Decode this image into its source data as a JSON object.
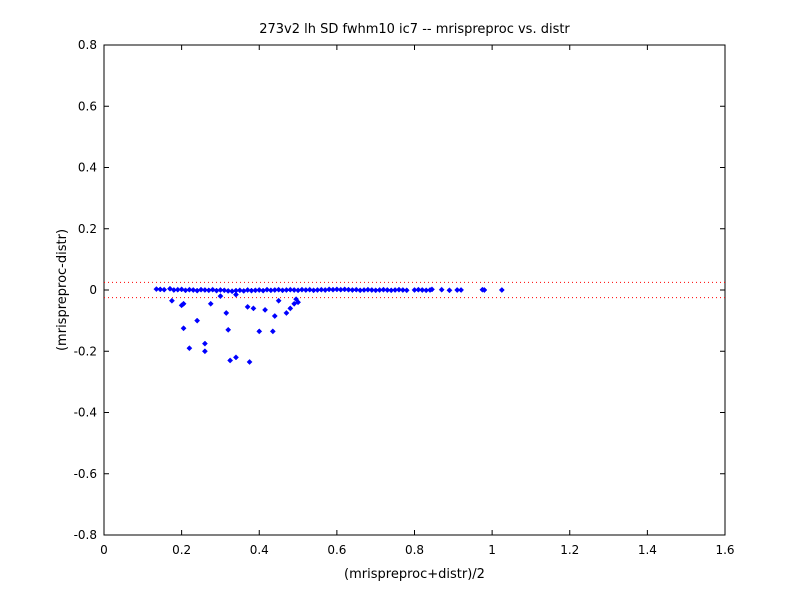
{
  "chart_data": {
    "type": "scatter",
    "title": "273v2 lh SD fwhm10 ic7 -- mrispreproc vs. distr",
    "xlabel": "(mrispreproc+distr)/2",
    "ylabel": "(mrispreproc-distr)",
    "xlim": [
      0,
      1.6
    ],
    "ylim": [
      -0.8,
      0.8
    ],
    "xticks": [
      0,
      0.2,
      0.4,
      0.6,
      0.8,
      1,
      1.2,
      1.4,
      1.6
    ],
    "xtick_labels": [
      "0",
      "0.2",
      "0.4",
      "0.6",
      "0.8",
      "1",
      "1.2",
      "1.4",
      "1.6"
    ],
    "yticks": [
      -0.8,
      -0.6,
      -0.4,
      -0.2,
      0,
      0.2,
      0.4,
      0.6,
      0.8
    ],
    "ytick_labels": [
      "-0.8",
      "-0.6",
      "-0.4",
      "-0.2",
      "0",
      "0.2",
      "0.4",
      "0.6",
      "0.8"
    ],
    "grid": false,
    "reference_lines": [
      {
        "y": 0.025,
        "style": "dotted",
        "color": "#ff0000"
      },
      {
        "y": -0.025,
        "style": "dotted",
        "color": "#ff0000"
      }
    ],
    "series": [
      {
        "color": "#0000ff",
        "marker": "diamond",
        "points": [
          [
            0.135,
            0.003
          ],
          [
            0.145,
            0.002
          ],
          [
            0.155,
            0.001
          ],
          [
            0.17,
            0.004
          ],
          [
            0.18,
            0.0
          ],
          [
            0.19,
            0.001
          ],
          [
            0.2,
            0.002
          ],
          [
            0.21,
            -0.001
          ],
          [
            0.22,
            0.001
          ],
          [
            0.23,
            0.0
          ],
          [
            0.24,
            -0.002
          ],
          [
            0.25,
            0.001
          ],
          [
            0.26,
            0.0
          ],
          [
            0.27,
            -0.001
          ],
          [
            0.28,
            0.001
          ],
          [
            0.29,
            -0.002
          ],
          [
            0.3,
            0.0
          ],
          [
            0.31,
            -0.001
          ],
          [
            0.32,
            -0.003
          ],
          [
            0.33,
            -0.004
          ],
          [
            0.34,
            -0.002
          ],
          [
            0.35,
            -0.001
          ],
          [
            0.36,
            -0.003
          ],
          [
            0.37,
            0.0
          ],
          [
            0.38,
            -0.002
          ],
          [
            0.39,
            -0.001
          ],
          [
            0.4,
            0.0
          ],
          [
            0.41,
            -0.002
          ],
          [
            0.42,
            0.001
          ],
          [
            0.43,
            -0.001
          ],
          [
            0.44,
            0.0
          ],
          [
            0.45,
            0.001
          ],
          [
            0.46,
            -0.001
          ],
          [
            0.47,
            0.0
          ],
          [
            0.48,
            0.001
          ],
          [
            0.49,
            0.0
          ],
          [
            0.5,
            -0.001
          ],
          [
            0.51,
            0.001
          ],
          [
            0.52,
            0.0
          ],
          [
            0.53,
            0.001
          ],
          [
            0.54,
            -0.001
          ],
          [
            0.55,
            0.0
          ],
          [
            0.56,
            0.001
          ],
          [
            0.57,
            0.0
          ],
          [
            0.58,
            0.002
          ],
          [
            0.59,
            0.001
          ],
          [
            0.6,
            0.002
          ],
          [
            0.61,
            0.001
          ],
          [
            0.62,
            0.002
          ],
          [
            0.63,
            0.001
          ],
          [
            0.64,
            0.0
          ],
          [
            0.65,
            0.001
          ],
          [
            0.66,
            -0.001
          ],
          [
            0.67,
            0.0
          ],
          [
            0.68,
            0.001
          ],
          [
            0.69,
            0.0
          ],
          [
            0.7,
            -0.001
          ],
          [
            0.71,
            0.0
          ],
          [
            0.72,
            0.001
          ],
          [
            0.73,
            0.0
          ],
          [
            0.74,
            -0.001
          ],
          [
            0.75,
            0.0
          ],
          [
            0.76,
            0.001
          ],
          [
            0.77,
            0.0
          ],
          [
            0.78,
            -0.001
          ],
          [
            0.8,
            0.0
          ],
          [
            0.81,
            0.001
          ],
          [
            0.82,
            0.0
          ],
          [
            0.83,
            -0.001
          ],
          [
            0.84,
            0.0
          ],
          [
            0.845,
            0.002
          ],
          [
            0.87,
            0.001
          ],
          [
            0.89,
            -0.001
          ],
          [
            0.91,
            0.0
          ],
          [
            0.92,
            0.0
          ],
          [
            0.975,
            0.001
          ],
          [
            0.98,
            0.0
          ],
          [
            1.025,
            0.0
          ],
          [
            0.175,
            -0.035
          ],
          [
            0.2,
            -0.05
          ],
          [
            0.205,
            -0.045
          ],
          [
            0.205,
            -0.125
          ],
          [
            0.22,
            -0.19
          ],
          [
            0.24,
            -0.1
          ],
          [
            0.26,
            -0.175
          ],
          [
            0.26,
            -0.2
          ],
          [
            0.275,
            -0.045
          ],
          [
            0.3,
            -0.02
          ],
          [
            0.315,
            -0.075
          ],
          [
            0.32,
            -0.13
          ],
          [
            0.325,
            -0.23
          ],
          [
            0.34,
            -0.22
          ],
          [
            0.34,
            -0.015
          ],
          [
            0.37,
            -0.055
          ],
          [
            0.375,
            -0.235
          ],
          [
            0.385,
            -0.06
          ],
          [
            0.4,
            -0.135
          ],
          [
            0.415,
            -0.065
          ],
          [
            0.435,
            -0.135
          ],
          [
            0.44,
            -0.085
          ],
          [
            0.45,
            -0.035
          ],
          [
            0.47,
            -0.075
          ],
          [
            0.48,
            -0.06
          ],
          [
            0.49,
            -0.045
          ],
          [
            0.495,
            -0.03
          ],
          [
            0.5,
            -0.04
          ]
        ]
      }
    ]
  }
}
